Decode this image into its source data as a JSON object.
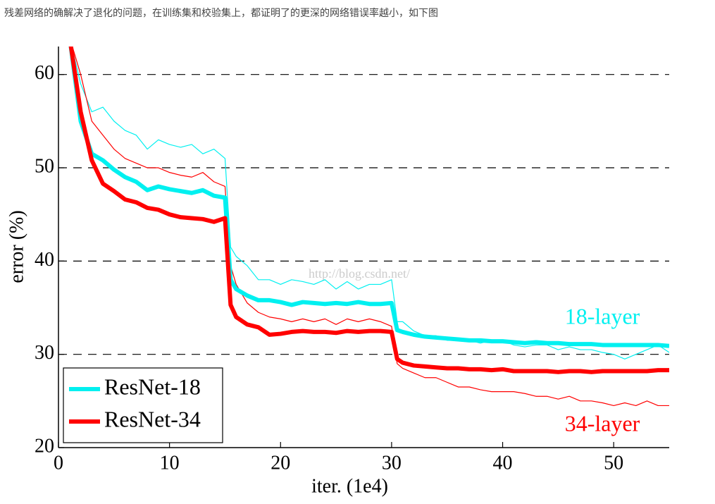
{
  "caption": "残差网络的确解决了退化的问题，在训练集和校验集上，都证明了的更深的网络错误率越小，如下图",
  "chart_data": {
    "type": "line",
    "xlabel": "iter. (1e4)",
    "ylabel": "error (%)",
    "watermark": "http://blog.csdn.net/",
    "annotations": [
      {
        "text": "18-layer",
        "color": "#00f0f0"
      },
      {
        "text": "34-layer",
        "color": "#ff0000"
      }
    ],
    "x": [
      1,
      2,
      3,
      4,
      5,
      6,
      7,
      8,
      9,
      10,
      11,
      12,
      13,
      14,
      15,
      15.5,
      16,
      17,
      18,
      19,
      20,
      21,
      22,
      23,
      24,
      25,
      26,
      27,
      28,
      29,
      30,
      30.5,
      31,
      32,
      33,
      34,
      35,
      36,
      37,
      38,
      39,
      40,
      41,
      42,
      43,
      44,
      45,
      46,
      47,
      48,
      49,
      50,
      51,
      52,
      53,
      54,
      55
    ],
    "series": [
      {
        "color": "#00f0f0",
        "linewidth": 1.2,
        "values": [
          64,
          59,
          56,
          56.5,
          55,
          54,
          53.5,
          52,
          53,
          52.5,
          52.2,
          52.5,
          51.5,
          52,
          51,
          41.5,
          40.5,
          39.5,
          38,
          38,
          37.5,
          38,
          37.8,
          37.5,
          38,
          37,
          37.8,
          37,
          37.5,
          37.5,
          38,
          33.5,
          33.5,
          32.5,
          32,
          32,
          31.5,
          31.5,
          31.5,
          31.2,
          31.5,
          31.5,
          31,
          30.8,
          31,
          31,
          30.5,
          30.8,
          30.5,
          30.5,
          30.2,
          30,
          29.5,
          30,
          30.5,
          31,
          30.2
        ]
      },
      {
        "color": "#ff0000",
        "linewidth": 1.2,
        "values": [
          64,
          60,
          55,
          53.5,
          52,
          51,
          50.5,
          50,
          50,
          49.5,
          49.2,
          49,
          49.5,
          48.5,
          48,
          39.5,
          37.5,
          35.5,
          34.5,
          34,
          33.8,
          33.5,
          33.8,
          33.5,
          33.8,
          33.2,
          33.8,
          33.5,
          33.8,
          33.5,
          33,
          29,
          28.5,
          28,
          27.5,
          27.5,
          27,
          26.5,
          26.5,
          26.2,
          26,
          26,
          26,
          25.8,
          25.5,
          25.5,
          25.2,
          25.5,
          25,
          25,
          24.8,
          24.5,
          24.8,
          24.5,
          25,
          24.5,
          24.5
        ]
      },
      {
        "name": "ResNet-18",
        "color": "#00f0f0",
        "linewidth": 6,
        "values": [
          64,
          55,
          51.5,
          50.8,
          49.8,
          49,
          48.5,
          47.6,
          48,
          47.7,
          47.5,
          47.3,
          47.6,
          47,
          46.8,
          38,
          37,
          36.3,
          35.8,
          35.8,
          35.6,
          35.3,
          35.6,
          35.5,
          35.4,
          35.5,
          35.4,
          35.6,
          35.4,
          35.4,
          35.5,
          32.6,
          32.4,
          32.1,
          31.9,
          31.8,
          31.7,
          31.6,
          31.5,
          31.5,
          31.4,
          31.4,
          31.3,
          31.2,
          31.3,
          31.2,
          31.2,
          31.1,
          31.1,
          31.1,
          31,
          31,
          31,
          31,
          31,
          31,
          30.9
        ]
      },
      {
        "name": "ResNet-34",
        "color": "#ff0000",
        "linewidth": 6,
        "values": [
          64,
          56,
          50.8,
          48.3,
          47.5,
          46.6,
          46.3,
          45.7,
          45.5,
          45,
          44.7,
          44.6,
          44.5,
          44.2,
          44.6,
          35.3,
          34,
          33.2,
          32.9,
          32.1,
          32.2,
          32.4,
          32.5,
          32.4,
          32.4,
          32.3,
          32.5,
          32.4,
          32.5,
          32.5,
          32.4,
          29.5,
          29.1,
          28.8,
          28.7,
          28.6,
          28.5,
          28.5,
          28.4,
          28.4,
          28.3,
          28.4,
          28.2,
          28.2,
          28.2,
          28.2,
          28.1,
          28.2,
          28.2,
          28.1,
          28.2,
          28.2,
          28.2,
          28.2,
          28.2,
          28.3,
          28.3
        ]
      }
    ],
    "xlim": [
      0,
      55
    ],
    "xticks": [
      0,
      10,
      20,
      30,
      40,
      50
    ],
    "ylim": [
      20,
      63
    ],
    "yticks": [
      20,
      30,
      40,
      50,
      60
    ],
    "grid": true,
    "legend": "lower left"
  }
}
